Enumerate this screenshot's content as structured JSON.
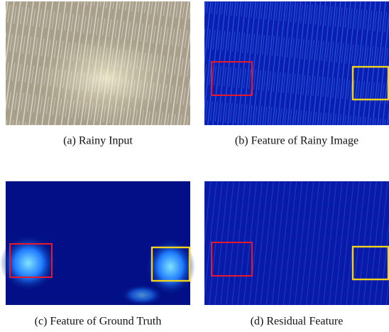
{
  "panels": [
    {
      "caption": "(a) Rainy Input"
    },
    {
      "caption": "(b) Feature of Rainy Image"
    },
    {
      "caption": "(c) Feature of Ground Truth"
    },
    {
      "caption": "(d) Residual Feature"
    }
  ]
}
